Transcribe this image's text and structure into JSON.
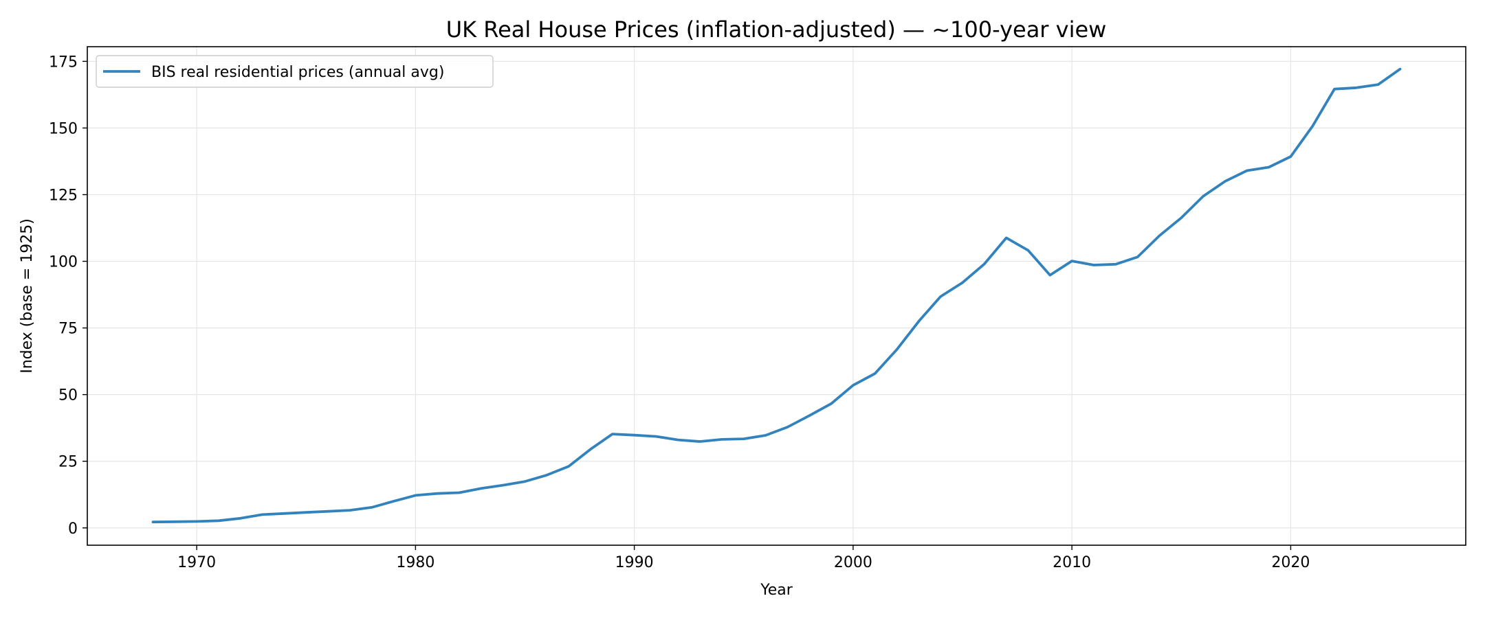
{
  "chart_data": {
    "type": "line",
    "title": "UK Real House Prices (inflation-adjusted) — ~100-year view",
    "xlabel": "Year",
    "ylabel": "Index (base = 1925)",
    "xlim": [
      1965,
      2028
    ],
    "ylim": [
      -6.5,
      180.5
    ],
    "xticks": [
      1970,
      1980,
      1990,
      2000,
      2010,
      2020
    ],
    "yticks": [
      0,
      25,
      50,
      75,
      100,
      125,
      150,
      175
    ],
    "grid": true,
    "legend_position": "top-left",
    "series": [
      {
        "name": "BIS real residential prices (annual avg)",
        "color": "#3182bd",
        "x": [
          1968,
          1969,
          1970,
          1971,
          1972,
          1973,
          1974,
          1975,
          1976,
          1977,
          1978,
          1979,
          1980,
          1981,
          1982,
          1983,
          1984,
          1985,
          1986,
          1987,
          1988,
          1989,
          1990,
          1991,
          1992,
          1993,
          1994,
          1995,
          1996,
          1997,
          1998,
          1999,
          2000,
          2001,
          2002,
          2003,
          2004,
          2005,
          2006,
          2007,
          2008,
          2009,
          2010,
          2011,
          2012,
          2013,
          2014,
          2015,
          2016,
          2017,
          2018,
          2019,
          2020,
          2021,
          2022,
          2023,
          2024,
          2025
        ],
        "y": [
          2.2,
          2.3,
          2.4,
          2.7,
          3.6,
          5.0,
          5.4,
          5.8,
          6.2,
          6.6,
          7.7,
          10.0,
          12.2,
          12.9,
          13.2,
          14.8,
          16.0,
          17.4,
          19.8,
          23.1,
          29.5,
          35.2,
          34.8,
          34.3,
          33.0,
          32.4,
          33.2,
          33.4,
          34.7,
          37.8,
          42.1,
          46.6,
          53.5,
          57.9,
          66.9,
          77.5,
          86.8,
          92.0,
          99.0,
          108.8,
          104.1,
          94.8,
          100.1,
          98.6,
          98.9,
          101.6,
          109.6,
          116.3,
          124.4,
          130.0,
          134.0,
          135.3,
          139.3,
          150.7,
          164.6,
          165.1,
          166.3,
          172.1
        ]
      }
    ]
  }
}
